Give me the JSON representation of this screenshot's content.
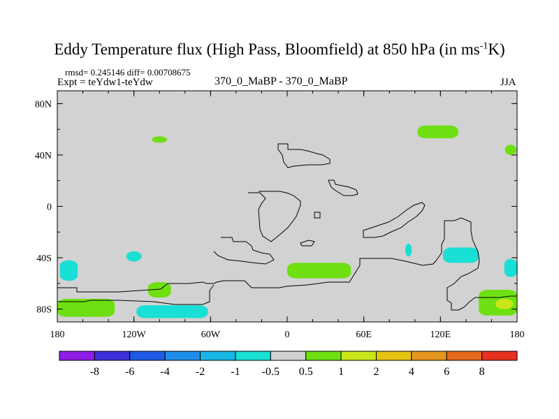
{
  "title": {
    "main": "Eddy Temperature flux (High Pass, Bloomfield) at 850 hPa (in ms",
    "sup": "-1",
    "tail": "K)"
  },
  "header": {
    "stats": "rmsd= 0.245146 diff= 0.00708675",
    "expt": "Expt = teYdw1-teYdw",
    "case": "370_0_MaBP - 370_0_MaBP",
    "season": "JJA"
  },
  "chart_data": {
    "type": "heatmap",
    "projection": "cylindrical equidistant",
    "lon_range": [
      -180,
      180
    ],
    "lat_range": [
      -90,
      90
    ],
    "x_ticks": [
      {
        "value": -180,
        "label": "180"
      },
      {
        "value": -120,
        "label": "120W"
      },
      {
        "value": -60,
        "label": "60W"
      },
      {
        "value": 0,
        "label": "0"
      },
      {
        "value": 60,
        "label": "60E"
      },
      {
        "value": 120,
        "label": "120E"
      },
      {
        "value": 180,
        "label": "180"
      }
    ],
    "y_ticks": [
      {
        "value": -80,
        "label": "80S"
      },
      {
        "value": -40,
        "label": "40S"
      },
      {
        "value": 0,
        "label": "0"
      },
      {
        "value": 40,
        "label": "40N"
      },
      {
        "value": 80,
        "label": "80N"
      }
    ],
    "colorbar": {
      "labels": [
        "-8",
        "-6",
        "-4",
        "-2",
        "-1",
        "-0.5",
        "0.5",
        "1",
        "2",
        "4",
        "6",
        "8"
      ],
      "colors": [
        "#8f1ee6",
        "#3c2fd8",
        "#1d5be6",
        "#1f8ee8",
        "#17b6e6",
        "#19dfd4",
        "#d2d2d2",
        "#6ee012",
        "#c8e61a",
        "#e6c414",
        "#e6951e",
        "#e66a1e",
        "#e6321e"
      ]
    },
    "regions": [
      {
        "level": "-1 to -0.5",
        "lon": -171,
        "lat": -50,
        "dlon": 14,
        "dlat": 16
      },
      {
        "level": "-1 to -0.5",
        "lon": -120,
        "lat": -39,
        "dlon": 12,
        "dlat": 8
      },
      {
        "level": "-1 to -0.5",
        "lon": -90,
        "lat": -82,
        "dlon": 56,
        "dlat": 10
      },
      {
        "level": "-1 to -0.5",
        "lon": 136,
        "lat": -38,
        "dlon": 28,
        "dlat": 12
      },
      {
        "level": "-1 to -0.5",
        "lon": 95,
        "lat": -34,
        "dlon": 5,
        "dlat": 10
      },
      {
        "level": "-1 to -0.5",
        "lon": 175,
        "lat": -48,
        "dlon": 10,
        "dlat": 14
      },
      {
        "level": "0.5 to 1",
        "lon": 118,
        "lat": 58,
        "dlon": 32,
        "dlat": 10
      },
      {
        "level": "0.5 to 1",
        "lon": -100,
        "lat": 52,
        "dlon": 12,
        "dlat": 5
      },
      {
        "level": "0.5 to 1",
        "lon": 175,
        "lat": 44,
        "dlon": 9,
        "dlat": 8
      },
      {
        "level": "0.5 to 1",
        "lon": 25,
        "lat": -50,
        "dlon": 50,
        "dlat": 12
      },
      {
        "level": "0.5 to 1",
        "lon": -100,
        "lat": -65,
        "dlon": 18,
        "dlat": 12
      },
      {
        "level": "0.5 to 1",
        "lon": 170,
        "lat": -75,
        "dlon": 40,
        "dlat": 20
      },
      {
        "level": "0.5 to 1",
        "lon": -160,
        "lat": -79,
        "dlon": 50,
        "dlat": 14
      },
      {
        "level": "1 to 2",
        "lon": 170,
        "lat": -76,
        "dlon": 14,
        "dlat": 8
      }
    ]
  }
}
